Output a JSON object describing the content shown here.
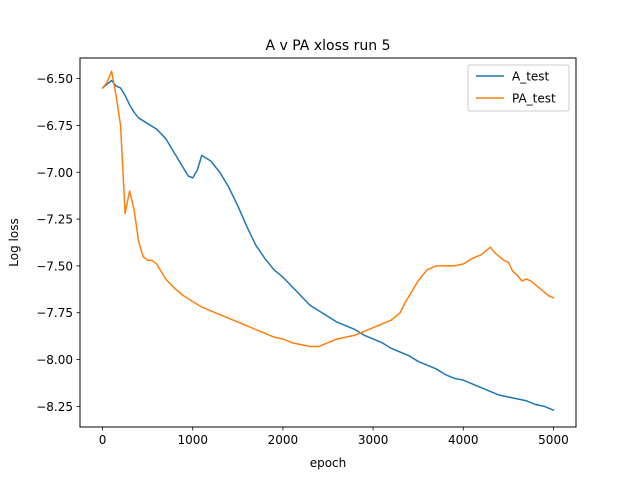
{
  "chart_data": {
    "type": "line",
    "title": "A v PA xloss run 5",
    "xlabel": "epoch",
    "ylabel": "Log loss",
    "xlim": [
      -250,
      5250
    ],
    "ylim": [
      -8.36,
      -6.39
    ],
    "xticks": [
      0,
      1000,
      2000,
      3000,
      4000,
      5000
    ],
    "xtick_labels": [
      "0",
      "1000",
      "2000",
      "3000",
      "4000",
      "5000"
    ],
    "yticks": [
      -6.5,
      -6.75,
      -7.0,
      -7.25,
      -7.5,
      -7.75,
      -8.0,
      -8.25
    ],
    "ytick_labels": [
      "−6.50",
      "−6.75",
      "−7.00",
      "−7.25",
      "−7.50",
      "−7.75",
      "−8.00",
      "−8.25"
    ],
    "grid": false,
    "legend_position": "top-right",
    "series": [
      {
        "name": "A_test",
        "color": "#1f77b4",
        "x": [
          0,
          50,
          100,
          150,
          200,
          250,
          300,
          350,
          400,
          500,
          600,
          700,
          800,
          850,
          900,
          950,
          1000,
          1050,
          1100,
          1200,
          1300,
          1400,
          1500,
          1600,
          1700,
          1800,
          1900,
          2000,
          2100,
          2200,
          2300,
          2400,
          2500,
          2600,
          2700,
          2800,
          2900,
          3000,
          3100,
          3200,
          3300,
          3400,
          3500,
          3600,
          3700,
          3800,
          3900,
          4000,
          4100,
          4200,
          4300,
          4400,
          4500,
          4600,
          4700,
          4800,
          4900,
          4950,
          5000
        ],
        "values": [
          -6.55,
          -6.53,
          -6.51,
          -6.54,
          -6.55,
          -6.59,
          -6.64,
          -6.68,
          -6.71,
          -6.74,
          -6.77,
          -6.82,
          -6.9,
          -6.94,
          -6.98,
          -7.02,
          -7.03,
          -6.99,
          -6.91,
          -6.94,
          -7.0,
          -7.08,
          -7.18,
          -7.29,
          -7.39,
          -7.46,
          -7.52,
          -7.56,
          -7.61,
          -7.66,
          -7.71,
          -7.74,
          -7.77,
          -7.8,
          -7.82,
          -7.84,
          -7.87,
          -7.89,
          -7.91,
          -7.94,
          -7.96,
          -7.98,
          -8.01,
          -8.03,
          -8.05,
          -8.08,
          -8.1,
          -8.11,
          -8.13,
          -8.15,
          -8.17,
          -8.19,
          -8.2,
          -8.21,
          -8.22,
          -8.24,
          -8.25,
          -8.26,
          -8.27
        ]
      },
      {
        "name": "PA_test",
        "color": "#ff7f0e",
        "x": [
          0,
          50,
          100,
          150,
          200,
          250,
          300,
          350,
          400,
          450,
          500,
          550,
          600,
          700,
          800,
          900,
          1000,
          1100,
          1200,
          1300,
          1400,
          1500,
          1600,
          1700,
          1800,
          1900,
          2000,
          2100,
          2200,
          2300,
          2400,
          2500,
          2600,
          2700,
          2800,
          2900,
          3000,
          3100,
          3200,
          3300,
          3350,
          3400,
          3500,
          3600,
          3700,
          3800,
          3900,
          4000,
          4100,
          4200,
          4250,
          4300,
          4350,
          4400,
          4450,
          4500,
          4550,
          4600,
          4650,
          4700,
          4750,
          4800,
          4850,
          4900,
          4950,
          5000
        ],
        "values": [
          -6.55,
          -6.52,
          -6.46,
          -6.59,
          -6.75,
          -7.22,
          -7.1,
          -7.2,
          -7.37,
          -7.45,
          -7.47,
          -7.47,
          -7.49,
          -7.57,
          -7.62,
          -7.66,
          -7.69,
          -7.72,
          -7.74,
          -7.76,
          -7.78,
          -7.8,
          -7.82,
          -7.84,
          -7.86,
          -7.88,
          -7.89,
          -7.91,
          -7.92,
          -7.93,
          -7.93,
          -7.91,
          -7.89,
          -7.88,
          -7.87,
          -7.85,
          -7.83,
          -7.81,
          -7.79,
          -7.75,
          -7.7,
          -7.66,
          -7.58,
          -7.52,
          -7.5,
          -7.5,
          -7.5,
          -7.49,
          -7.46,
          -7.44,
          -7.42,
          -7.4,
          -7.43,
          -7.45,
          -7.47,
          -7.48,
          -7.53,
          -7.55,
          -7.58,
          -7.57,
          -7.58,
          -7.6,
          -7.62,
          -7.64,
          -7.66,
          -7.67
        ]
      }
    ]
  }
}
